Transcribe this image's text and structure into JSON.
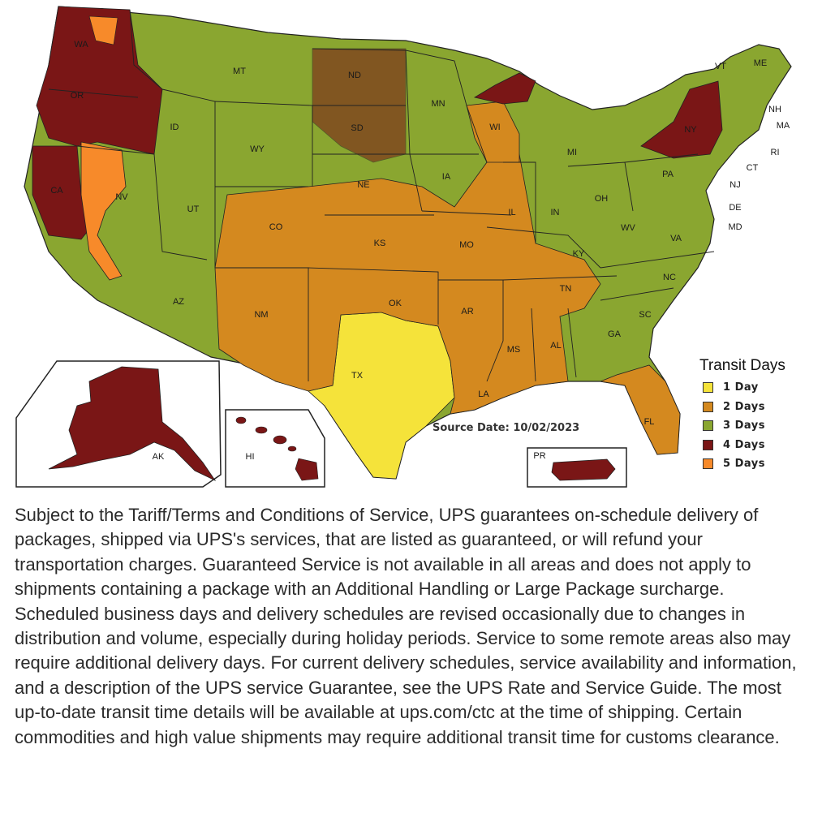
{
  "legend": {
    "title": "Transit Days",
    "items": [
      {
        "label": "1 Day",
        "color": "#f5e33a"
      },
      {
        "label": "2 Days",
        "color": "#d4891f"
      },
      {
        "label": "3 Days",
        "color": "#8aa630"
      },
      {
        "label": "4 Days",
        "color": "#7a1616"
      },
      {
        "label": "5 Days",
        "color": "#f78a2a"
      }
    ]
  },
  "source_date": "Source Date: 10/02/2023",
  "insets": {
    "alaska": "AK",
    "hawaii": "HI",
    "puerto_rico": "PR"
  },
  "state_labels": [
    "WA",
    "OR",
    "CA",
    "ID",
    "NV",
    "UT",
    "AZ",
    "MT",
    "WY",
    "CO",
    "NM",
    "ND",
    "SD",
    "NE",
    "KS",
    "OK",
    "TX",
    "MN",
    "IA",
    "MO",
    "AR",
    "LA",
    "WI",
    "IL",
    "MS",
    "MI",
    "IN",
    "KY",
    "TN",
    "AL",
    "OH",
    "GA",
    "FL",
    "WV",
    "VA",
    "NC",
    "SC",
    "PA",
    "NY",
    "VT",
    "ME",
    "NH",
    "MA",
    "RI",
    "CT",
    "NJ",
    "DE",
    "MD"
  ],
  "disclaimer": "Subject to the Tariff/Terms and Conditions of Service, UPS guarantees on-schedule delivery of packages, shipped via UPS's services, that are listed as guaranteed, or will refund your transportation charges. Guaranteed Service is not available in all areas and does not apply to shipments containing a package with an Additional Handling or Large Package surcharge. Scheduled business days and delivery schedules are revised occasionally due to changes in distribution and volume, especially during holiday periods. Service to some remote areas also may require additional delivery days. For current delivery schedules, service availability and information, and a description of the UPS service Guarantee, see the UPS Rate and Service Guide. The most up-to-date transit time details will be available at ups.com/ctc at the time of shipping. Certain commodities and high value shipments may require additional transit time for customs clearance."
}
